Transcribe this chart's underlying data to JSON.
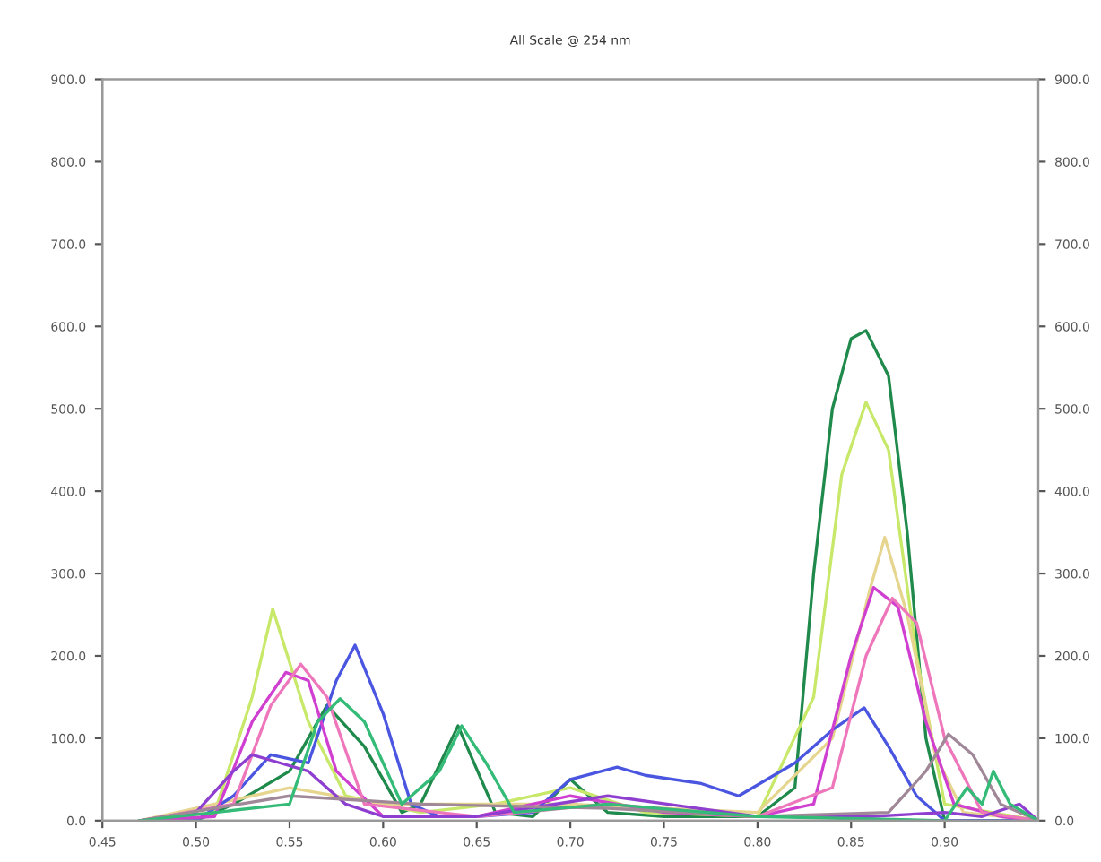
{
  "chart_data": {
    "type": "line",
    "title": "All Scale @ 254 nm",
    "xlim": [
      0.45,
      0.95
    ],
    "xticks": [
      {
        "value": 0.45,
        "label": "0.45"
      },
      {
        "value": 0.5,
        "label": "0.50"
      },
      {
        "value": 0.55,
        "label": "0.55"
      },
      {
        "value": 0.6,
        "label": "0.60"
      },
      {
        "value": 0.65,
        "label": "0.65"
      },
      {
        "value": 0.7,
        "label": "0.70"
      },
      {
        "value": 0.75,
        "label": "0.75"
      },
      {
        "value": 0.8,
        "label": "0.80"
      },
      {
        "value": 0.85,
        "label": "0.85"
      },
      {
        "value": 0.9,
        "label": "0.90"
      }
    ],
    "ylim": [
      0,
      900
    ],
    "yticks": [
      {
        "value": 0,
        "label": "0.0"
      },
      {
        "value": 100,
        "label": "100.0"
      },
      {
        "value": 200,
        "label": "200.0"
      },
      {
        "value": 300,
        "label": "300.0"
      },
      {
        "value": 400,
        "label": "400.0"
      },
      {
        "value": 500,
        "label": "500.0"
      },
      {
        "value": 600,
        "label": "600.0"
      },
      {
        "value": 700,
        "label": "700.0"
      },
      {
        "value": 800,
        "label": "800.0"
      },
      {
        "value": 900,
        "label": "900.0"
      }
    ],
    "y2lim": [
      0,
      900
    ],
    "y2ticks": [
      {
        "value": 0,
        "label": "0.0"
      },
      {
        "value": 100,
        "label": "100.0"
      },
      {
        "value": 200,
        "label": "200.0"
      },
      {
        "value": 300,
        "label": "300.0"
      },
      {
        "value": 400,
        "label": "400.0"
      },
      {
        "value": 500,
        "label": "500.0"
      },
      {
        "value": 600,
        "label": "600.0"
      },
      {
        "value": 700,
        "label": "700.0"
      },
      {
        "value": 800,
        "label": "800.0"
      },
      {
        "value": 900,
        "label": "900.0"
      }
    ],
    "grid": false,
    "legend": false,
    "marker": "none",
    "line_style": "solid",
    "series": [
      {
        "color": "#1f8a4c",
        "x": [
          0.47,
          0.5,
          0.52,
          0.55,
          0.57,
          0.59,
          0.61,
          0.62,
          0.64,
          0.66,
          0.68,
          0.7,
          0.72,
          0.75,
          0.78,
          0.8,
          0.82,
          0.83,
          0.84,
          0.85,
          0.858,
          0.87,
          0.88,
          0.89,
          0.9,
          0.91,
          0.95
        ],
        "values": [
          0,
          0,
          20,
          60,
          140,
          90,
          10,
          20,
          115,
          10,
          5,
          50,
          10,
          5,
          5,
          5,
          40,
          300,
          500,
          585,
          595,
          540,
          350,
          100,
          0,
          0,
          0
        ]
      },
      {
        "color": "#c8e86a",
        "x": [
          0.47,
          0.51,
          0.53,
          0.541,
          0.56,
          0.58,
          0.62,
          0.66,
          0.7,
          0.74,
          0.8,
          0.83,
          0.845,
          0.858,
          0.87,
          0.885,
          0.9,
          0.95
        ],
        "values": [
          0,
          10,
          150,
          257,
          120,
          30,
          10,
          20,
          40,
          10,
          5,
          150,
          420,
          508,
          450,
          200,
          20,
          0
        ]
      },
      {
        "color": "#e6d58f",
        "x": [
          0.47,
          0.55,
          0.6,
          0.7,
          0.8,
          0.84,
          0.86,
          0.868,
          0.88,
          0.895,
          0.91,
          0.95
        ],
        "values": [
          0,
          40,
          20,
          20,
          10,
          100,
          280,
          344,
          250,
          80,
          10,
          0
        ]
      },
      {
        "color": "#4a55e0",
        "x": [
          0.47,
          0.5,
          0.52,
          0.54,
          0.56,
          0.575,
          0.585,
          0.6,
          0.615,
          0.63,
          0.65,
          0.68,
          0.7,
          0.725,
          0.74,
          0.77,
          0.79,
          0.82,
          0.84,
          0.857,
          0.87,
          0.885,
          0.9,
          0.95
        ],
        "values": [
          0,
          0,
          30,
          80,
          70,
          170,
          213,
          130,
          20,
          5,
          5,
          10,
          50,
          65,
          55,
          45,
          30,
          70,
          110,
          137,
          90,
          30,
          0,
          0
        ]
      },
      {
        "color": "#d040d0",
        "x": [
          0.47,
          0.51,
          0.53,
          0.548,
          0.56,
          0.575,
          0.6,
          0.65,
          0.7,
          0.75,
          0.8,
          0.83,
          0.85,
          0.862,
          0.875,
          0.89,
          0.905,
          0.93,
          0.95
        ],
        "values": [
          0,
          5,
          120,
          180,
          170,
          60,
          5,
          5,
          30,
          10,
          5,
          20,
          200,
          283,
          260,
          120,
          20,
          5,
          0
        ]
      },
      {
        "color": "#ee77bb",
        "x": [
          0.47,
          0.52,
          0.54,
          0.556,
          0.57,
          0.59,
          0.65,
          0.72,
          0.8,
          0.84,
          0.858,
          0.872,
          0.885,
          0.9,
          0.92,
          0.95
        ],
        "values": [
          0,
          20,
          140,
          190,
          150,
          20,
          5,
          20,
          5,
          40,
          200,
          270,
          240,
          100,
          10,
          0
        ]
      },
      {
        "color": "#8e3fd0",
        "x": [
          0.47,
          0.5,
          0.52,
          0.53,
          0.545,
          0.56,
          0.58,
          0.6,
          0.65,
          0.72,
          0.8,
          0.86,
          0.9,
          0.92,
          0.94,
          0.95
        ],
        "values": [
          0,
          10,
          60,
          80,
          70,
          60,
          20,
          5,
          5,
          30,
          5,
          5,
          10,
          5,
          20,
          0
        ]
      },
      {
        "color": "#a08898",
        "x": [
          0.47,
          0.55,
          0.62,
          0.72,
          0.8,
          0.87,
          0.89,
          0.902,
          0.915,
          0.93,
          0.95
        ],
        "values": [
          0,
          30,
          20,
          15,
          5,
          10,
          60,
          105,
          80,
          20,
          0
        ]
      },
      {
        "color": "#33bb77",
        "x": [
          0.47,
          0.55,
          0.565,
          0.577,
          0.59,
          0.61,
          0.63,
          0.642,
          0.655,
          0.67,
          0.72,
          0.8,
          0.9,
          0.912,
          0.92,
          0.926,
          0.935,
          0.95
        ],
        "values": [
          0,
          20,
          120,
          148,
          120,
          20,
          60,
          115,
          70,
          10,
          20,
          5,
          0,
          40,
          20,
          60,
          20,
          0
        ]
      }
    ]
  }
}
